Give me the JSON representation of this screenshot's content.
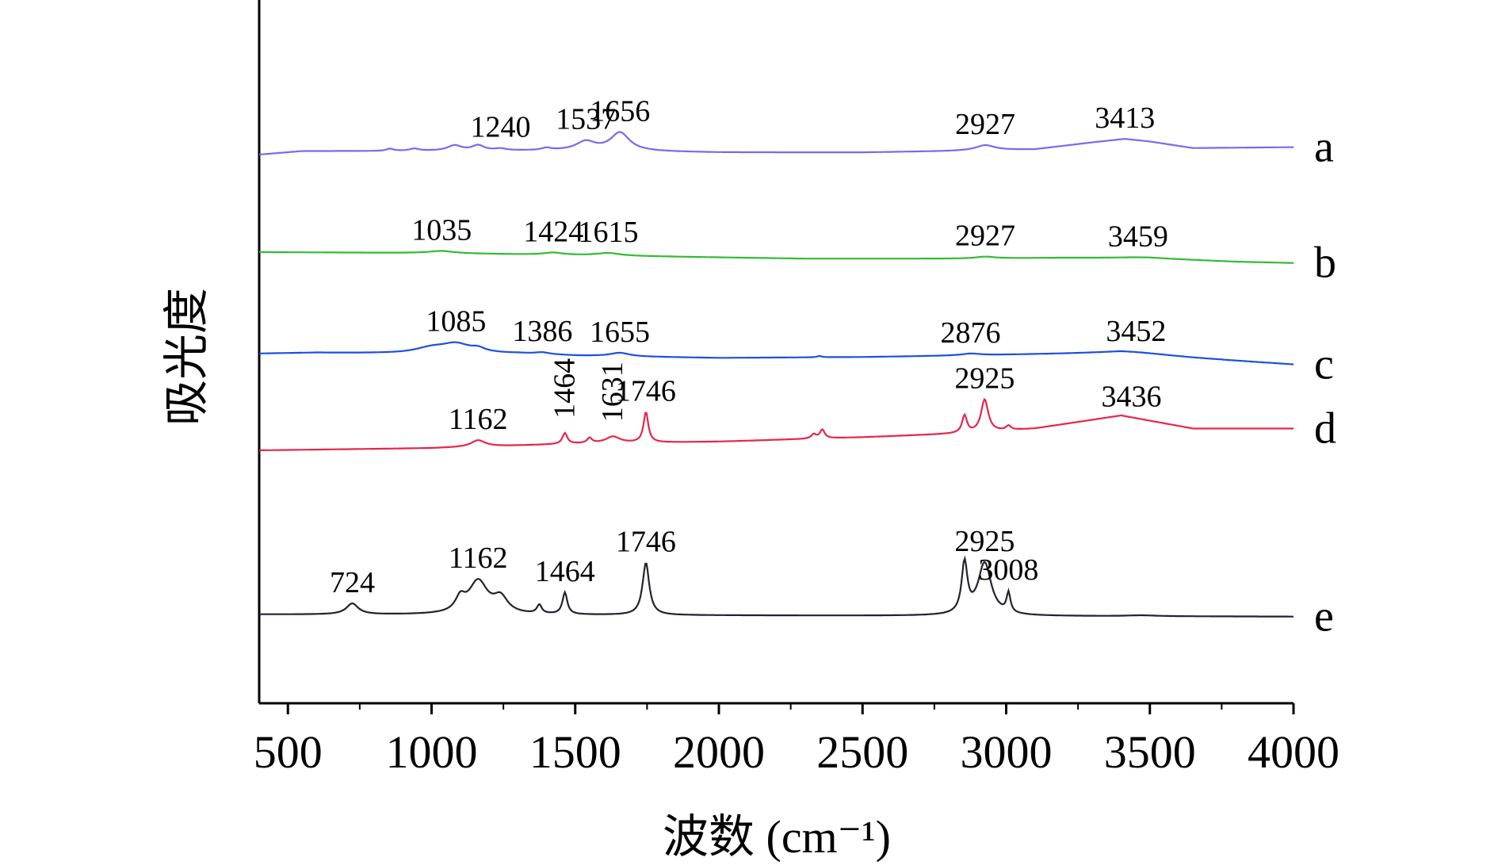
{
  "chart_data": {
    "type": "line",
    "xlabel": "波数 (cm⁻¹)",
    "ylabel": "吸光度",
    "xlim": [
      400,
      4000
    ],
    "xticks": [
      500,
      1000,
      1500,
      2000,
      2500,
      3000,
      3500,
      4000
    ],
    "xtick_labels": [
      "500",
      "1000",
      "1500",
      "2000",
      "2500",
      "3000",
      "3500",
      "4000"
    ],
    "grid": false,
    "series": [
      {
        "name": "a",
        "color": "#7b68ee",
        "baseline": [
          [
            400,
            0.0
          ],
          [
            550,
            0.08
          ],
          [
            800,
            0.08
          ],
          [
            1500,
            0.09
          ],
          [
            2000,
            0.05
          ],
          [
            2500,
            0.05
          ],
          [
            2800,
            0.08
          ],
          [
            3100,
            0.12
          ],
          [
            3300,
            0.28
          ],
          [
            3413,
            0.36
          ],
          [
            3500,
            0.3
          ],
          [
            3650,
            0.15
          ],
          [
            4000,
            0.17
          ]
        ],
        "peaks": [
          [
            855,
            0.05,
            15
          ],
          [
            940,
            0.05,
            20
          ],
          [
            1080,
            0.12,
            30
          ],
          [
            1162,
            0.12,
            25
          ],
          [
            1240,
            0.04,
            25
          ],
          [
            1400,
            0.05,
            20
          ],
          [
            1537,
            0.2,
            40
          ],
          [
            1656,
            0.42,
            40
          ],
          [
            2927,
            0.12,
            40
          ]
        ],
        "labels": [
          {
            "x": 1240,
            "text": "1240"
          },
          {
            "x": 1537,
            "text": "1537"
          },
          {
            "x": 1656,
            "text": "1656"
          },
          {
            "x": 2927,
            "text": "2927"
          },
          {
            "x": 3413,
            "text": "3413"
          }
        ]
      },
      {
        "name": "b",
        "color": "#33bb33",
        "baseline": [
          [
            400,
            0.0
          ],
          [
            1000,
            -0.02
          ],
          [
            1500,
            -0.07
          ],
          [
            2000,
            -0.12
          ],
          [
            2300,
            -0.15
          ],
          [
            2800,
            -0.15
          ],
          [
            3200,
            -0.13
          ],
          [
            3500,
            -0.14
          ],
          [
            3800,
            -0.22
          ],
          [
            4000,
            -0.25
          ]
        ],
        "peaks": [
          [
            1035,
            0.05,
            50
          ],
          [
            1424,
            0.05,
            40
          ],
          [
            1615,
            0.06,
            50
          ],
          [
            2927,
            0.04,
            40
          ],
          [
            3459,
            0.02,
            100
          ]
        ],
        "labels": [
          {
            "x": 1035,
            "text": "1035"
          },
          {
            "x": 1424,
            "text": "1424"
          },
          {
            "x": 1615,
            "text": "1615"
          },
          {
            "x": 2927,
            "text": "2927"
          },
          {
            "x": 3459,
            "text": "3459"
          }
        ]
      },
      {
        "name": "c",
        "color": "#1f4fe0",
        "baseline": [
          [
            400,
            0.0
          ],
          [
            600,
            0.02
          ],
          [
            900,
            0.0
          ],
          [
            1300,
            0.0
          ],
          [
            1500,
            -0.05
          ],
          [
            2000,
            -0.1
          ],
          [
            2500,
            -0.08
          ],
          [
            2800,
            -0.05
          ],
          [
            3400,
            0.02
          ],
          [
            3650,
            -0.1
          ],
          [
            4000,
            -0.25
          ]
        ],
        "peaks": [
          [
            1000,
            0.12,
            70
          ],
          [
            1085,
            0.2,
            60
          ],
          [
            1162,
            0.08,
            30
          ],
          [
            1386,
            0.04,
            30
          ],
          [
            1655,
            0.08,
            40
          ],
          [
            2876,
            0.04,
            40
          ],
          [
            2350,
            0.03,
            10
          ],
          [
            3452,
            0.04,
            150
          ]
        ],
        "labels": [
          {
            "x": 1085,
            "text": "1085"
          },
          {
            "x": 1386,
            "text": "1386"
          },
          {
            "x": 1655,
            "text": "1655"
          },
          {
            "x": 2876,
            "text": "2876"
          },
          {
            "x": 3452,
            "text": "3452"
          }
        ]
      },
      {
        "name": "d",
        "color": "#e8254a",
        "baseline": [
          [
            400,
            0.0
          ],
          [
            1000,
            0.05
          ],
          [
            1500,
            0.15
          ],
          [
            2000,
            0.2
          ],
          [
            2500,
            0.3
          ],
          [
            2900,
            0.4
          ],
          [
            3100,
            0.5
          ],
          [
            3400,
            0.8
          ],
          [
            3650,
            0.5
          ],
          [
            4000,
            0.5
          ]
        ],
        "peaks": [
          [
            1162,
            0.15,
            30
          ],
          [
            1464,
            0.25,
            10
          ],
          [
            1550,
            0.12,
            10
          ],
          [
            1631,
            0.15,
            30
          ],
          [
            1746,
            0.7,
            10
          ],
          [
            2330,
            0.1,
            10
          ],
          [
            2360,
            0.2,
            10
          ],
          [
            2855,
            0.4,
            10
          ],
          [
            2925,
            0.75,
            15
          ],
          [
            3008,
            0.1,
            10
          ]
        ],
        "labels": [
          {
            "x": 1162,
            "text": "1162"
          },
          {
            "x": 1464,
            "text": "1464",
            "rotate": true
          },
          {
            "x": 1631,
            "text": "1631",
            "rotate": true
          },
          {
            "x": 1746,
            "text": "1746"
          },
          {
            "x": 2925,
            "text": "2925"
          },
          {
            "x": 3436,
            "text": "3436"
          }
        ]
      },
      {
        "name": "e",
        "color": "#222233",
        "baseline": [
          [
            400,
            0.0
          ],
          [
            4000,
            -0.05
          ]
        ],
        "peaks": [
          [
            724,
            0.25,
            25
          ],
          [
            1100,
            0.3,
            20
          ],
          [
            1162,
            0.75,
            40
          ],
          [
            1240,
            0.35,
            30
          ],
          [
            1375,
            0.2,
            10
          ],
          [
            1464,
            0.5,
            10
          ],
          [
            1746,
            1.2,
            14
          ],
          [
            2855,
            1.15,
            12
          ],
          [
            2925,
            1.2,
            28
          ],
          [
            3008,
            0.45,
            8
          ],
          [
            3470,
            0.02,
            60
          ]
        ],
        "labels": [
          {
            "x": 724,
            "text": "724"
          },
          {
            "x": 1162,
            "text": "1162"
          },
          {
            "x": 1464,
            "text": "1464"
          },
          {
            "x": 1746,
            "text": "1746"
          },
          {
            "x": 2925,
            "text": "2925"
          },
          {
            "x": 3008,
            "text": "3008"
          }
        ]
      }
    ]
  }
}
